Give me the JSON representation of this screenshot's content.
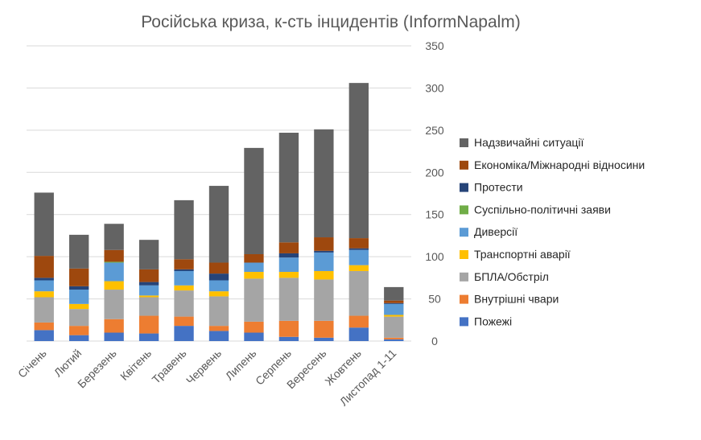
{
  "chart_data": {
    "type": "bar",
    "stacked": true,
    "title": "Російська криза, к-сть інцидентів (InformNapalm)",
    "xlabel": "",
    "ylabel": "",
    "ylim": [
      0,
      350
    ],
    "yticks": [
      0,
      50,
      100,
      150,
      200,
      250,
      300,
      350
    ],
    "y_axis_side": "right",
    "grid": true,
    "legend_position": "right",
    "categories": [
      "Січень",
      "Лютий",
      "Березень",
      "Квітень",
      "Травень",
      "Червень",
      "Липень",
      "Серпень",
      "Вересень",
      "Жовтень",
      "Листопад 1-11"
    ],
    "series": [
      {
        "name": "Пожежі",
        "color": "#4472c4",
        "values": [
          13,
          7,
          10,
          9,
          18,
          12,
          10,
          5,
          4,
          16,
          2
        ]
      },
      {
        "name": "Внутрішні чвари",
        "color": "#ed7d31",
        "values": [
          9,
          11,
          16,
          21,
          11,
          6,
          13,
          19,
          20,
          14,
          2
        ]
      },
      {
        "name": "БПЛА/Обстріл",
        "color": "#a5a5a5",
        "values": [
          30,
          20,
          35,
          22,
          31,
          35,
          51,
          51,
          49,
          53,
          25
        ]
      },
      {
        "name": "Транспортні аварії",
        "color": "#ffc000",
        "values": [
          7,
          6,
          10,
          2,
          6,
          6,
          8,
          7,
          10,
          7,
          2
        ]
      },
      {
        "name": "Диверсії",
        "color": "#5b9bd5",
        "values": [
          13,
          17,
          22,
          12,
          17,
          13,
          11,
          17,
          22,
          18,
          13
        ]
      },
      {
        "name": "Суспільно-політичні заяви",
        "color": "#70ad47",
        "values": [
          0,
          0,
          1,
          0,
          0,
          0,
          0,
          0,
          0,
          0,
          0
        ]
      },
      {
        "name": "Протести",
        "color": "#264478",
        "values": [
          3,
          4,
          0,
          4,
          2,
          8,
          0,
          5,
          2,
          2,
          1
        ]
      },
      {
        "name": "Економіка/Міжнародні відносини",
        "color": "#9e480e",
        "values": [
          26,
          21,
          14,
          15,
          12,
          13,
          10,
          13,
          16,
          12,
          3
        ]
      },
      {
        "name": "Надзвичайні ситуації",
        "color": "#636363",
        "values": [
          75,
          40,
          31,
          35,
          70,
          91,
          126,
          130,
          128,
          184,
          16
        ]
      }
    ]
  }
}
